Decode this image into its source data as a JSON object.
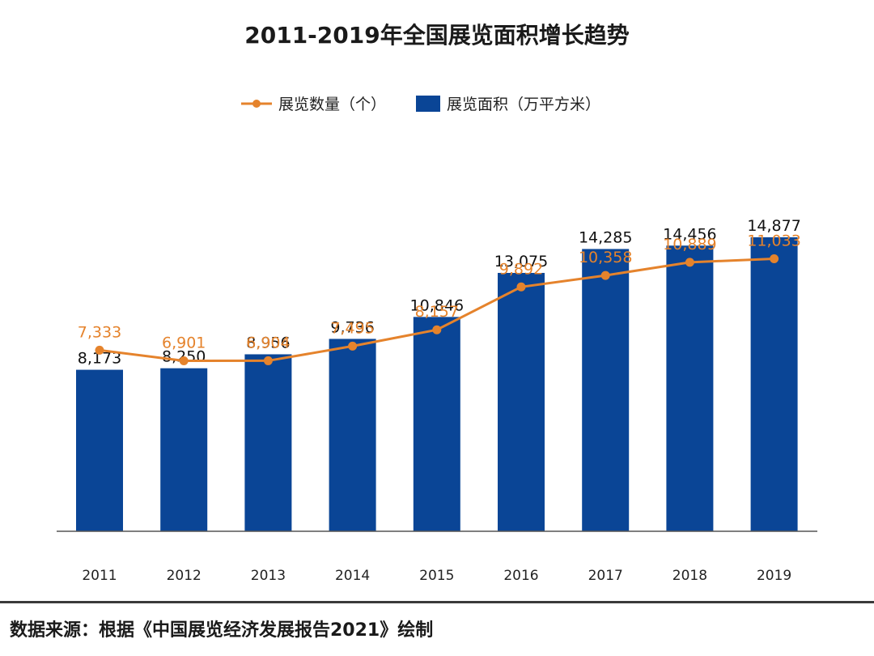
{
  "chart_data": {
    "type": "bar",
    "title": "2011-2019年全国展览面积增长趋势",
    "categories": [
      "2011",
      "2012",
      "2013",
      "2014",
      "2015",
      "2016",
      "2017",
      "2018",
      "2019"
    ],
    "series": [
      {
        "name": "展览面积（万平方米）",
        "type": "bar",
        "color": "#0a4596",
        "values": [
          8173,
          8250,
          8956,
          9736,
          10846,
          13075,
          14285,
          14456,
          14877
        ],
        "labels": [
          "8,173",
          "8,250",
          "8,956",
          "9,736",
          "10,846",
          "13,075",
          "14,285",
          "14,456",
          "14,877"
        ]
      },
      {
        "name": "展览数量（个）",
        "type": "line",
        "color": "#e5832c",
        "values": [
          7333,
          6901,
          6904,
          7495,
          8157,
          9892,
          10358,
          10889,
          11033
        ],
        "labels": [
          "7,333",
          "6,901",
          "6,904",
          "7,495",
          "8,157",
          "9,892",
          "10,358",
          "10,889",
          "11,033"
        ]
      }
    ],
    "legend_position": "top-center",
    "grid": false,
    "bar_ylim": [
      0,
      25000
    ],
    "line_ylim": [
      0,
      20000
    ]
  },
  "source_note": "数据来源：根据《中国展览经济发展报告2021》绘制"
}
